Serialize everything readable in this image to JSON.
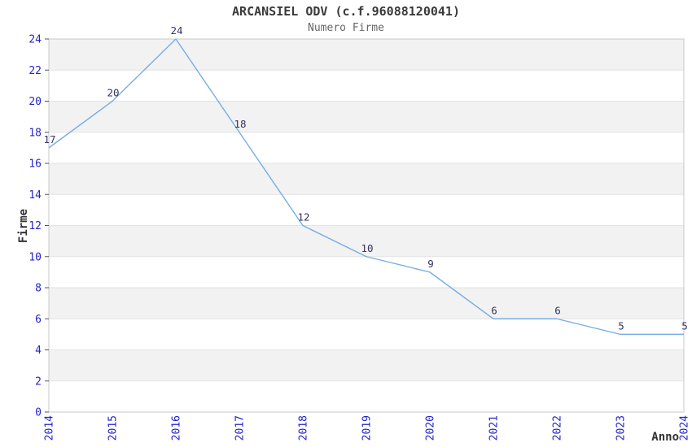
{
  "chart_data": {
    "type": "line",
    "title": "ARCANSIEL ODV (c.f.96088120041)",
    "subtitle": "Numero Firme",
    "xlabel": "Anno",
    "ylabel": "Firme",
    "x": [
      2014,
      2015,
      2016,
      2017,
      2018,
      2019,
      2020,
      2021,
      2022,
      2023,
      2024
    ],
    "values": [
      17,
      20,
      24,
      18,
      12,
      10,
      9,
      6,
      6,
      5,
      5
    ],
    "ylim": [
      0,
      24
    ],
    "ytick_step": 2,
    "legend": "none",
    "grid": "alternating-horizontal-bands",
    "colors": {
      "line": "#76ade4",
      "tick_label": "#2323cc",
      "data_label": "#333366",
      "band": "#f2f2f2",
      "gridline": "#e3e3e3",
      "border": "#c8c8c8",
      "tick_mark": "#555555",
      "axis_title": "#333333"
    }
  }
}
